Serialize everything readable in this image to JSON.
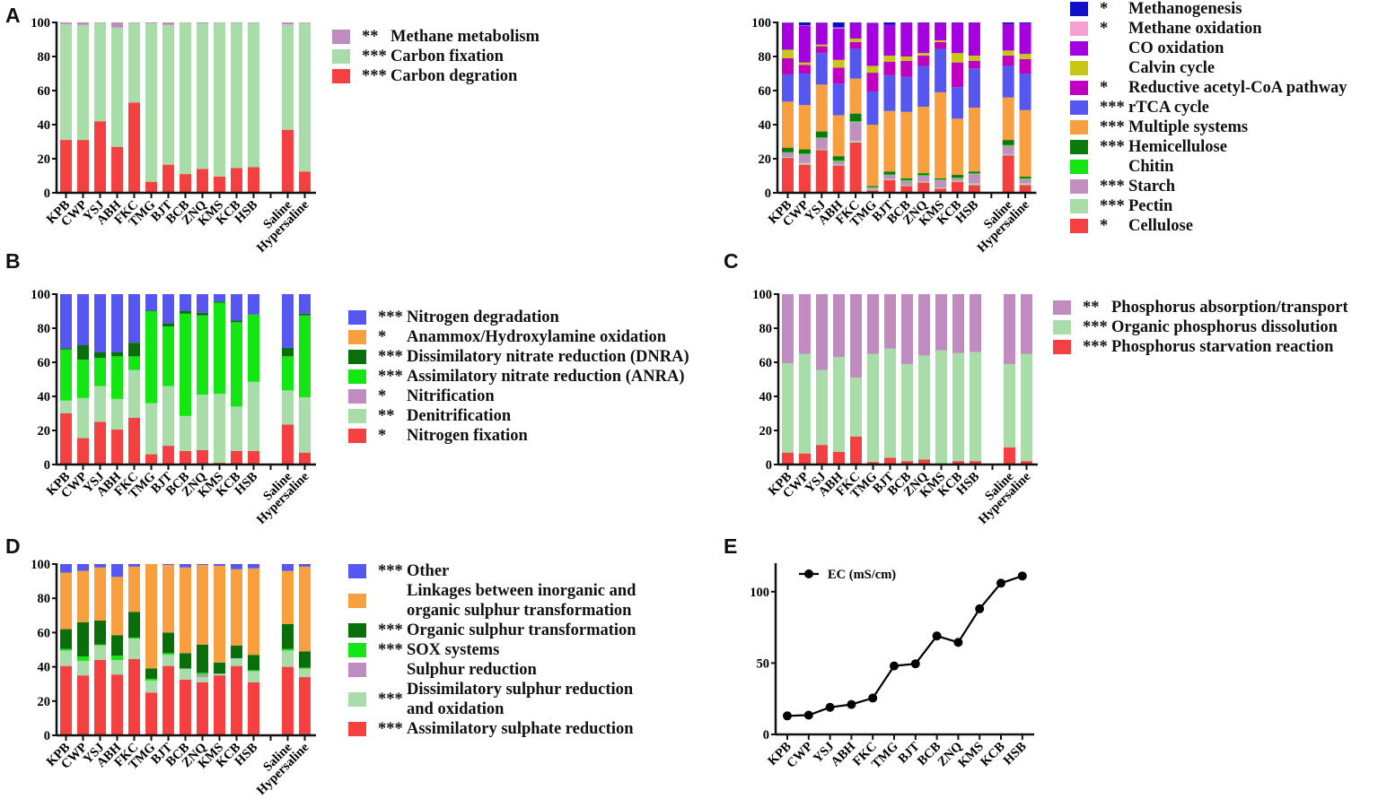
{
  "panels": {
    "a": "A",
    "b": "B",
    "c": "C",
    "d": "D",
    "e": "E"
  },
  "chart_data": [
    {
      "id": "A",
      "type": "bar",
      "stacked": true,
      "categories": [
        "KPB",
        "CWP",
        "YSJ",
        "ABH",
        "FKC",
        "TMG",
        "BJT",
        "BCB",
        "ZNQ",
        "KMS",
        "KCB",
        "HSB",
        "Saline",
        "Hypersaline"
      ],
      "ylim": [
        0,
        100
      ],
      "yticks": [
        0,
        20,
        40,
        60,
        80,
        100
      ],
      "series": [
        {
          "name": "Carbon degration",
          "sig": "***",
          "color": "#f44040",
          "values": [
            31,
            31,
            42,
            27,
            53,
            6.5,
            16.5,
            11,
            14,
            9.5,
            14.5,
            15,
            37,
            12.5
          ]
        },
        {
          "name": "Carbon fixation",
          "sig": "***",
          "color": "#a8dca8",
          "values": [
            68,
            67.5,
            57.7,
            70,
            46.7,
            93,
            82,
            88.8,
            85.5,
            90.3,
            85.2,
            84.7,
            61.8,
            87.2
          ]
        },
        {
          "name": "Methane metabolism",
          "sig": "**",
          "color": "#c08cc0",
          "values": [
            1,
            1.5,
            0.3,
            3,
            0.3,
            0.5,
            1.5,
            0.2,
            0.5,
            0.2,
            0.3,
            0.3,
            1.2,
            0.3
          ]
        }
      ]
    },
    {
      "id": "A2",
      "type": "bar",
      "stacked": true,
      "categories": [
        "KPB",
        "CWP",
        "YSJ",
        "ABH",
        "FKC",
        "TMG",
        "BJT",
        "BCB",
        "ZNQ",
        "KMS",
        "KCB",
        "HSB",
        "Saline",
        "Hypersaline"
      ],
      "ylim": [
        0,
        100
      ],
      "yticks": [
        0,
        20,
        40,
        60,
        80,
        100
      ],
      "series": [
        {
          "name": "Cellulose",
          "sig": "*  ",
          "color": "#f44040",
          "values": [
            20.5,
            16.5,
            25,
            16,
            29.5,
            1.5,
            7.5,
            4,
            6,
            2.5,
            6.5,
            4.5,
            22,
            4.5
          ]
        },
        {
          "name": "Pectin",
          "sig": "***",
          "color": "#a8dca8",
          "values": [
            0.5,
            1,
            0.5,
            0.5,
            1,
            0.5,
            0.5,
            0.5,
            0.5,
            0.5,
            0.5,
            1,
            0.5,
            1
          ]
        },
        {
          "name": "Starch",
          "sig": "***",
          "color": "#c090c0",
          "values": [
            2.5,
            5,
            6.5,
            2,
            11,
            1,
            2.5,
            2.5,
            3.5,
            4.5,
            1.5,
            5.5,
            5,
            2.5
          ]
        },
        {
          "name": "Chitin",
          "sig": "",
          "color": "#14e614",
          "values": [
            0.3,
            0.5,
            0.5,
            0.5,
            0.5,
            0.3,
            0.3,
            0.5,
            0.5,
            0.3,
            0.3,
            0.5,
            0.5,
            0.5
          ]
        },
        {
          "name": "Hemicellulose",
          "sig": "***",
          "color": "#0a7a0a",
          "values": [
            2.7,
            2.5,
            3.5,
            2.5,
            4.5,
            0.7,
            1.7,
            1,
            1,
            0.7,
            1.7,
            1,
            3,
            1
          ]
        },
        {
          "name": "Multiple systems",
          "sig": "***",
          "color": "#f8a040",
          "values": [
            27,
            26,
            27.5,
            24,
            20.5,
            36,
            35.5,
            39,
            39,
            50.5,
            33,
            37.5,
            25,
            39
          ]
        },
        {
          "name": "rTCA cycle",
          "sig": "***",
          "color": "#5656f0",
          "values": [
            16,
            18.5,
            18.5,
            18.5,
            17.5,
            19.5,
            21,
            20.5,
            24,
            25.5,
            18.5,
            23,
            18.5,
            21.5
          ]
        },
        {
          "name": "Reductive acetyl-CoA pathway",
          "sig": "*  ",
          "color": "#c000c0",
          "values": [
            9.5,
            5,
            4,
            9.5,
            4,
            11,
            8,
            9.5,
            6,
            4,
            14.5,
            4.5,
            6,
            8.5
          ]
        },
        {
          "name": "Calvin cycle",
          "sig": "",
          "color": "#c8c814",
          "values": [
            5,
            1.5,
            1,
            4.5,
            2,
            4,
            3.5,
            2.5,
            1.5,
            1,
            5.5,
            3,
            3,
            3
          ]
        },
        {
          "name": "CO oxidation",
          "sig": "",
          "color": "#a400e0",
          "values": [
            15.5,
            21.5,
            12.5,
            18.5,
            9.3,
            25,
            18,
            19.8,
            17.8,
            10.3,
            17.8,
            19.3,
            15.5,
            18
          ]
        },
        {
          "name": "Methane oxidation",
          "sig": "*  ",
          "color": "#f4a0d0",
          "values": [
            0.2,
            0.2,
            0.2,
            0.5,
            0,
            0.3,
            0,
            0,
            0,
            0,
            0,
            0,
            0,
            0
          ]
        },
        {
          "name": "Methanogenesis",
          "sig": "*  ",
          "color": "#1010c8",
          "values": [
            0.3,
            1.8,
            0.3,
            3,
            0.2,
            0.2,
            1.5,
            0.2,
            0.2,
            0.2,
            0.2,
            0.2,
            1,
            0.5
          ]
        }
      ]
    },
    {
      "id": "B",
      "type": "bar",
      "stacked": true,
      "categories": [
        "KPB",
        "CWP",
        "YSJ",
        "ABH",
        "FKC",
        "TMG",
        "BJT",
        "BCB",
        "ZNQ",
        "KMS",
        "KCB",
        "HSB",
        "Saline",
        "Hypersaline"
      ],
      "ylim": [
        0,
        100
      ],
      "yticks": [
        0,
        20,
        40,
        60,
        80,
        100
      ],
      "series": [
        {
          "name": "Nitrogen fixation",
          "sig": "*  ",
          "color": "#f44040",
          "values": [
            30,
            15.5,
            25,
            20.5,
            27.5,
            6,
            11,
            8,
            8.5,
            1,
            8,
            8,
            23.5,
            7
          ]
        },
        {
          "name": "Denitrification",
          "sig": "** ",
          "color": "#a8dca8",
          "values": [
            7.5,
            23.5,
            21,
            18,
            28,
            30,
            35,
            20.5,
            32.5,
            40.5,
            26,
            40.5,
            20,
            32.5
          ]
        },
        {
          "name": "Nitrification",
          "sig": "*  ",
          "color": "#c08cc0",
          "values": [
            0,
            0,
            0,
            0,
            0,
            0,
            0,
            0,
            0,
            0,
            0,
            0,
            0,
            0
          ]
        },
        {
          "name": "Assimilatory nitrate reduction (ANRA)",
          "sig": "***",
          "color": "#14e614",
          "values": [
            30,
            22.5,
            16.5,
            25,
            8,
            54,
            35,
            60,
            46.5,
            53.5,
            49.5,
            39.5,
            20,
            48
          ]
        },
        {
          "name": "Dissimilatory nitrate reduction (DNRA)",
          "sig": "***",
          "color": "#0a6e0a",
          "values": [
            0.7,
            8.5,
            3.5,
            2.5,
            8,
            0.3,
            2,
            1.5,
            1.5,
            0.7,
            1,
            0,
            5,
            1
          ]
        },
        {
          "name": "Anammox/Hydroxylamine oxidation",
          "sig": "*  ",
          "color": "#f8a040",
          "values": [
            0,
            0,
            0,
            0,
            0,
            0,
            0,
            0,
            0,
            0,
            0,
            0,
            0,
            0
          ]
        },
        {
          "name": "Nitrogen degradation",
          "sig": "***",
          "color": "#5656f0",
          "values": [
            31.8,
            30,
            34,
            34,
            28.5,
            9.7,
            17,
            10,
            11,
            4.3,
            15.5,
            12,
            31.5,
            11.5
          ]
        }
      ]
    },
    {
      "id": "C",
      "type": "bar",
      "stacked": true,
      "categories": [
        "KPB",
        "CWP",
        "YSJ",
        "ABH",
        "FKC",
        "TMG",
        "BJT",
        "BCB",
        "ZNQ",
        "KMS",
        "KCB",
        "HSB",
        "Saline",
        "Hypersaline"
      ],
      "ylim": [
        0,
        100
      ],
      "yticks": [
        0,
        20,
        40,
        60,
        80,
        100
      ],
      "series": [
        {
          "name": "Phosphorus starvation reaction",
          "sig": "***",
          "color": "#f44040",
          "values": [
            7,
            6.5,
            11.5,
            7.5,
            16.5,
            1.5,
            4,
            2,
            3,
            0.5,
            2,
            2,
            10,
            2
          ]
        },
        {
          "name": "Organic phosphorus dissolution",
          "sig": "***",
          "color": "#a8dca8",
          "values": [
            52.5,
            58.5,
            44,
            55.5,
            34.5,
            63.5,
            64,
            57,
            61,
            66.5,
            63.5,
            64,
            49,
            63
          ]
        },
        {
          "name": "Phosphorus absorption/transport",
          "sig": "** ",
          "color": "#c08cc0",
          "values": [
            40.5,
            35,
            44.5,
            37,
            49,
            35,
            32,
            41,
            36,
            33,
            34.5,
            34,
            41,
            35
          ]
        }
      ]
    },
    {
      "id": "D",
      "type": "bar",
      "stacked": true,
      "categories": [
        "KPB",
        "CWP",
        "YSJ",
        "ABH",
        "FKC",
        "TMG",
        "BJT",
        "BCB",
        "ZNQ",
        "KMS",
        "KCB",
        "HSB",
        "Saline",
        "Hypersaline"
      ],
      "ylim": [
        0,
        100
      ],
      "yticks": [
        0,
        20,
        40,
        60,
        80,
        100
      ],
      "series": [
        {
          "name": "Assimilatory sulphate reduction",
          "sig": "***",
          "color": "#f44040",
          "values": [
            40.5,
            35,
            44,
            35.5,
            44.5,
            25,
            40.5,
            32.5,
            31,
            35,
            40.5,
            31,
            40,
            34
          ]
        },
        {
          "name": "Dissimilatory sulphur reduction\nand oxidation",
          "sig": "***",
          "color": "#a8dca8",
          "values": [
            9,
            8.5,
            8.5,
            8.5,
            12,
            7,
            6.5,
            6.5,
            3,
            1,
            4.5,
            6.5,
            9.5,
            5
          ]
        },
        {
          "name": "Sulphur reduction",
          "sig": "",
          "color": "#c08cc0",
          "values": [
            0,
            0,
            0,
            0,
            0,
            0,
            0,
            0,
            1.5,
            0,
            0,
            0,
            0,
            0
          ]
        },
        {
          "name": "SOX systems",
          "sig": "***",
          "color": "#14e614",
          "values": [
            1,
            2.5,
            0.5,
            2.5,
            0.5,
            1,
            1,
            0,
            1,
            0,
            0,
            0.5,
            1,
            0.5
          ]
        },
        {
          "name": "Organic sulphur transformation",
          "sig": "***",
          "color": "#0a6e0a",
          "values": [
            11.5,
            20,
            14,
            12,
            15,
            6,
            12,
            9,
            16.5,
            6.5,
            7.5,
            9,
            14.5,
            9.5
          ]
        },
        {
          "name": "Linkages between inorganic and\norganic sulphur transformation",
          "sig": "",
          "color": "#f8a040",
          "values": [
            33,
            30,
            31,
            34,
            26.5,
            61,
            39.5,
            50,
            46.5,
            56.5,
            44.5,
            50.5,
            31,
            49.5
          ]
        },
        {
          "name": "Other",
          "sig": "***",
          "color": "#5656f0",
          "values": [
            5,
            4,
            2,
            7.5,
            1.5,
            0,
            0.5,
            2,
            0.5,
            1,
            3,
            2.5,
            4,
            1.5
          ]
        }
      ]
    },
    {
      "id": "E",
      "type": "line",
      "categories": [
        "KPB",
        "CWP",
        "YSJ",
        "ABH",
        "FKC",
        "TMG",
        "BJT",
        "BCB",
        "ZNQ",
        "KMS",
        "KCB",
        "HSB"
      ],
      "ylim": [
        0,
        120
      ],
      "yticks": [
        0,
        50,
        100
      ],
      "series": [
        {
          "name": "EC (mS/cm)",
          "color": "#000000",
          "values": [
            13,
            13.5,
            19,
            21,
            25.5,
            48,
            49.5,
            69,
            64.5,
            88,
            106,
            111
          ]
        }
      ]
    }
  ]
}
